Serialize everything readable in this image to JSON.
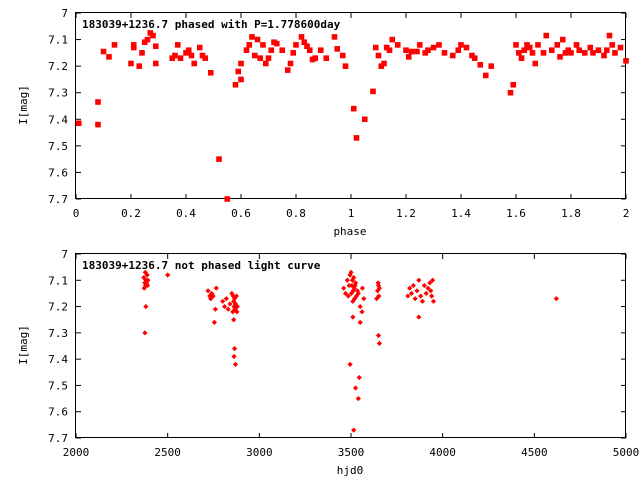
{
  "chart_data": [
    {
      "type": "scatter",
      "title": "183039+1236.7 phased with P=1.778600day",
      "xlabel": "phase",
      "ylabel": "I[mag]",
      "xlim": [
        0,
        2
      ],
      "ylim": [
        7.7,
        7.0
      ],
      "y_inverted": true,
      "grid": false,
      "legend": "none",
      "xticks": [
        "0",
        "0.2",
        "0.4",
        "0.6",
        "0.8",
        "1",
        "1.2",
        "1.4",
        "1.6",
        "1.8",
        "2"
      ],
      "yticks": [
        "7",
        "7.1",
        "7.2",
        "7.3",
        "7.4",
        "7.5",
        "7.6",
        "7.7"
      ],
      "marker": "filled-square",
      "color": "#ff0000",
      "x": [
        0.01,
        0.08,
        0.08,
        0.1,
        0.12,
        0.14,
        0.2,
        0.21,
        0.21,
        0.23,
        0.24,
        0.25,
        0.26,
        0.27,
        0.28,
        0.29,
        0.29,
        0.35,
        0.36,
        0.37,
        0.38,
        0.4,
        0.41,
        0.42,
        0.43,
        0.45,
        0.46,
        0.47,
        0.49,
        0.52,
        0.55,
        0.58,
        0.59,
        0.6,
        0.6,
        0.62,
        0.63,
        0.64,
        0.65,
        0.66,
        0.67,
        0.68,
        0.69,
        0.7,
        0.71,
        0.72,
        0.73,
        0.75,
        0.77,
        0.78,
        0.79,
        0.8,
        0.82,
        0.83,
        0.84,
        0.85,
        0.86,
        0.87,
        0.89,
        0.91,
        0.94,
        0.95,
        0.97,
        0.98,
        1.01,
        1.02,
        1.05,
        1.08,
        1.09,
        1.1,
        1.11,
        1.12,
        1.13,
        1.14,
        1.15,
        1.17,
        1.2,
        1.21,
        1.22,
        1.24,
        1.25,
        1.27,
        1.28,
        1.3,
        1.32,
        1.34,
        1.37,
        1.39,
        1.4,
        1.42,
        1.44,
        1.45,
        1.47,
        1.49,
        1.51,
        1.58,
        1.59,
        1.6,
        1.61,
        1.62,
        1.63,
        1.64,
        1.65,
        1.66,
        1.67,
        1.68,
        1.7,
        1.71,
        1.73,
        1.75,
        1.76,
        1.77,
        1.78,
        1.79,
        1.8,
        1.82,
        1.83,
        1.85,
        1.87,
        1.88,
        1.9,
        1.92,
        1.93,
        1.94,
        1.95,
        1.96,
        1.98,
        2.0
      ],
      "y": [
        7.415,
        7.42,
        7.335,
        7.145,
        7.165,
        7.12,
        7.19,
        7.12,
        7.13,
        7.2,
        7.15,
        7.11,
        7.1,
        7.075,
        7.085,
        7.125,
        7.19,
        7.17,
        7.16,
        7.12,
        7.17,
        7.15,
        7.14,
        7.16,
        7.19,
        7.13,
        7.16,
        7.17,
        7.225,
        7.55,
        7.7,
        7.27,
        7.22,
        7.25,
        7.19,
        7.14,
        7.12,
        7.09,
        7.16,
        7.1,
        7.17,
        7.12,
        7.19,
        7.17,
        7.14,
        7.11,
        7.115,
        7.14,
        7.215,
        7.19,
        7.15,
        7.12,
        7.09,
        7.11,
        7.125,
        7.14,
        7.175,
        7.17,
        7.14,
        7.17,
        7.09,
        7.135,
        7.16,
        7.2,
        7.36,
        7.47,
        7.4,
        7.295,
        7.13,
        7.16,
        7.2,
        7.19,
        7.13,
        7.14,
        7.1,
        7.12,
        7.14,
        7.165,
        7.145,
        7.145,
        7.12,
        7.15,
        7.14,
        7.13,
        7.12,
        7.15,
        7.16,
        7.14,
        7.12,
        7.13,
        7.16,
        7.17,
        7.195,
        7.235,
        7.2,
        7.3,
        7.27,
        7.12,
        7.15,
        7.17,
        7.14,
        7.12,
        7.13,
        7.15,
        7.19,
        7.12,
        7.15,
        7.085,
        7.14,
        7.12,
        7.165,
        7.1,
        7.15,
        7.14,
        7.15,
        7.12,
        7.14,
        7.15,
        7.13,
        7.15,
        7.14,
        7.16,
        7.14,
        7.085,
        7.12,
        7.15,
        7.13,
        7.18
      ]
    },
    {
      "type": "scatter",
      "title": "183039+1236.7 not phased light curve",
      "xlabel": "hjd0",
      "ylabel": "I[mag]",
      "xlim": [
        2000,
        5000
      ],
      "ylim": [
        7.7,
        7.0
      ],
      "y_inverted": true,
      "grid": false,
      "legend": "none",
      "xticks": [
        "2000",
        "2500",
        "3000",
        "3500",
        "4000",
        "4500",
        "5000"
      ],
      "yticks": [
        "7",
        "7.1",
        "7.2",
        "7.3",
        "7.4",
        "7.5",
        "7.6",
        "7.7"
      ],
      "marker": "filled-diamond",
      "color": "#ff0000",
      "x": [
        2370,
        2372,
        2375,
        2378,
        2380,
        2382,
        2385,
        2388,
        2390,
        2392,
        2376,
        2381,
        2500,
        2720,
        2730,
        2735,
        2740,
        2748,
        2755,
        2760,
        2765,
        2800,
        2810,
        2820,
        2830,
        2840,
        2850,
        2855,
        2858,
        2860,
        2862,
        2865,
        2868,
        2870,
        2875,
        2878,
        2880,
        2860,
        2865,
        2870,
        2862,
        3460,
        3470,
        3480,
        3485,
        3490,
        3495,
        3500,
        3502,
        3505,
        3508,
        3510,
        3512,
        3515,
        3518,
        3520,
        3522,
        3525,
        3530,
        3535,
        3540,
        3550,
        3560,
        3562,
        3570,
        3495,
        3515,
        3525,
        3540,
        3545,
        3550,
        3510,
        3640,
        3645,
        3648,
        3650,
        3652,
        3655,
        3650,
        3655,
        3810,
        3820,
        3830,
        3840,
        3850,
        3860,
        3870,
        3880,
        3890,
        3900,
        3910,
        3920,
        3930,
        3935,
        3940,
        3945,
        3950,
        3870,
        4620
      ],
      "y": [
        7.09,
        7.13,
        7.11,
        7.07,
        7.12,
        7.1,
        7.11,
        7.08,
        7.12,
        7.1,
        7.3,
        7.2,
        7.08,
        7.14,
        7.16,
        7.17,
        7.15,
        7.16,
        7.26,
        7.21,
        7.13,
        7.18,
        7.2,
        7.17,
        7.21,
        7.19,
        7.15,
        7.22,
        7.16,
        7.18,
        7.2,
        7.17,
        7.21,
        7.19,
        7.16,
        7.22,
        7.2,
        7.25,
        7.36,
        7.42,
        7.39,
        7.13,
        7.15,
        7.1,
        7.16,
        7.12,
        7.08,
        7.07,
        7.15,
        7.12,
        7.1,
        7.18,
        7.14,
        7.09,
        7.13,
        7.17,
        7.12,
        7.11,
        7.16,
        7.14,
        7.15,
        7.2,
        7.22,
        7.13,
        7.17,
        7.42,
        7.67,
        7.51,
        7.55,
        7.47,
        7.26,
        7.24,
        7.17,
        7.14,
        7.11,
        7.12,
        7.16,
        7.13,
        7.31,
        7.34,
        7.16,
        7.13,
        7.15,
        7.12,
        7.17,
        7.14,
        7.1,
        7.16,
        7.18,
        7.12,
        7.15,
        7.13,
        7.11,
        7.14,
        7.16,
        7.1,
        7.18,
        7.24,
        7.17
      ]
    }
  ]
}
